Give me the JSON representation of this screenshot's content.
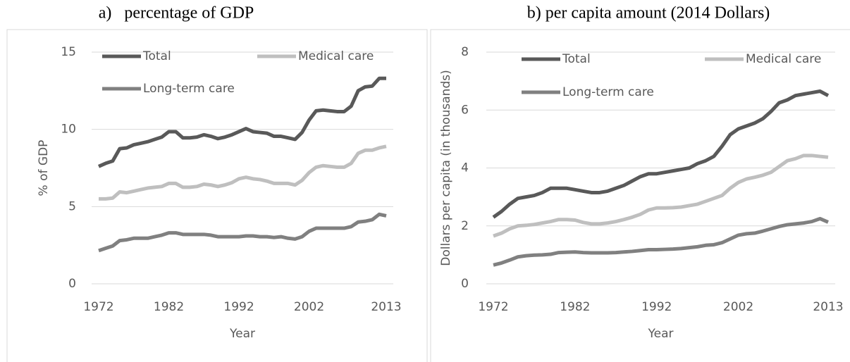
{
  "chart_data": [
    {
      "type": "line",
      "title": "a)   percentage of GDP",
      "xlabel": "Year",
      "ylabel": "% of GDP",
      "x": [
        1972,
        1973,
        1974,
        1975,
        1976,
        1977,
        1978,
        1979,
        1980,
        1981,
        1982,
        1983,
        1984,
        1985,
        1986,
        1987,
        1988,
        1989,
        1990,
        1991,
        1992,
        1993,
        1994,
        1995,
        1996,
        1997,
        1998,
        1999,
        2000,
        2001,
        2002,
        2003,
        2004,
        2005,
        2006,
        2007,
        2008,
        2009,
        2010,
        2011,
        2012,
        2013
      ],
      "xlim": [
        1972,
        2013
      ],
      "xticks": [
        1972,
        1982,
        1992,
        2002,
        2013
      ],
      "ylim": [
        0,
        15
      ],
      "yticks": [
        0,
        5,
        10,
        15
      ],
      "grid": true,
      "series": [
        {
          "name": "Total",
          "color": "#595959",
          "values": [
            7.6,
            7.8,
            7.95,
            8.75,
            8.8,
            9.0,
            9.1,
            9.2,
            9.35,
            9.5,
            9.85,
            9.85,
            9.45,
            9.45,
            9.5,
            9.65,
            9.55,
            9.4,
            9.5,
            9.65,
            9.85,
            10.05,
            9.85,
            9.8,
            9.75,
            9.55,
            9.55,
            9.45,
            9.35,
            9.8,
            10.6,
            11.2,
            11.25,
            11.2,
            11.15,
            11.15,
            11.5,
            12.5,
            12.75,
            12.8,
            13.3,
            13.3
          ]
        },
        {
          "name": "Medical care",
          "color": "#bfbfbf",
          "values": [
            5.5,
            5.5,
            5.55,
            5.95,
            5.9,
            6.0,
            6.1,
            6.2,
            6.25,
            6.3,
            6.5,
            6.5,
            6.25,
            6.25,
            6.3,
            6.45,
            6.4,
            6.3,
            6.4,
            6.55,
            6.8,
            6.9,
            6.8,
            6.75,
            6.65,
            6.5,
            6.5,
            6.5,
            6.4,
            6.7,
            7.2,
            7.55,
            7.65,
            7.6,
            7.55,
            7.55,
            7.8,
            8.45,
            8.65,
            8.65,
            8.8,
            8.9
          ]
        },
        {
          "name": "Long-term care",
          "color": "#808080",
          "values": [
            2.15,
            2.3,
            2.45,
            2.8,
            2.85,
            2.95,
            2.95,
            2.95,
            3.05,
            3.15,
            3.3,
            3.3,
            3.2,
            3.2,
            3.2,
            3.2,
            3.15,
            3.05,
            3.05,
            3.05,
            3.05,
            3.1,
            3.1,
            3.05,
            3.05,
            3.0,
            3.05,
            2.95,
            2.9,
            3.05,
            3.4,
            3.6,
            3.6,
            3.6,
            3.6,
            3.6,
            3.7,
            4.0,
            4.05,
            4.15,
            4.5,
            4.4
          ]
        }
      ]
    },
    {
      "type": "line",
      "title": "b) per capita amount (2014 Dollars)",
      "xlabel": "Year",
      "ylabel": "Dollars per capita (in thousands)",
      "x": [
        1972,
        1973,
        1974,
        1975,
        1976,
        1977,
        1978,
        1979,
        1980,
        1981,
        1982,
        1983,
        1984,
        1985,
        1986,
        1987,
        1988,
        1989,
        1990,
        1991,
        1992,
        1993,
        1994,
        1995,
        1996,
        1997,
        1998,
        1999,
        2000,
        2001,
        2002,
        2003,
        2004,
        2005,
        2006,
        2007,
        2008,
        2009,
        2010,
        2011,
        2012,
        2013
      ],
      "xlim": [
        1972,
        2013
      ],
      "xticks": [
        1972,
        1982,
        1992,
        2002,
        2013
      ],
      "ylim": [
        0,
        8
      ],
      "yticks": [
        0,
        2,
        4,
        6,
        8
      ],
      "grid": true,
      "series": [
        {
          "name": "Total",
          "color": "#595959",
          "values": [
            2.3,
            2.5,
            2.75,
            2.95,
            3.0,
            3.05,
            3.15,
            3.3,
            3.3,
            3.3,
            3.25,
            3.2,
            3.15,
            3.15,
            3.2,
            3.3,
            3.4,
            3.55,
            3.7,
            3.8,
            3.8,
            3.85,
            3.9,
            3.95,
            4.0,
            4.15,
            4.25,
            4.4,
            4.75,
            5.15,
            5.35,
            5.45,
            5.55,
            5.7,
            5.95,
            6.25,
            6.35,
            6.5,
            6.55,
            6.6,
            6.65,
            6.5
          ]
        },
        {
          "name": "Medical care",
          "color": "#bfbfbf",
          "values": [
            1.65,
            1.75,
            1.9,
            2.0,
            2.02,
            2.05,
            2.1,
            2.15,
            2.22,
            2.22,
            2.2,
            2.12,
            2.07,
            2.07,
            2.1,
            2.15,
            2.22,
            2.3,
            2.4,
            2.55,
            2.62,
            2.62,
            2.63,
            2.65,
            2.7,
            2.75,
            2.85,
            2.95,
            3.05,
            3.3,
            3.5,
            3.62,
            3.68,
            3.75,
            3.85,
            4.05,
            4.25,
            4.32,
            4.43,
            4.43,
            4.4,
            4.37
          ]
        },
        {
          "name": "Long-term care",
          "color": "#808080",
          "values": [
            0.65,
            0.72,
            0.82,
            0.93,
            0.97,
            0.99,
            1.0,
            1.02,
            1.08,
            1.09,
            1.1,
            1.08,
            1.07,
            1.07,
            1.07,
            1.08,
            1.1,
            1.12,
            1.15,
            1.18,
            1.18,
            1.19,
            1.2,
            1.22,
            1.25,
            1.28,
            1.33,
            1.35,
            1.42,
            1.55,
            1.68,
            1.73,
            1.75,
            1.82,
            1.9,
            1.98,
            2.04,
            2.07,
            2.1,
            2.15,
            2.25,
            2.13
          ]
        }
      ]
    }
  ]
}
